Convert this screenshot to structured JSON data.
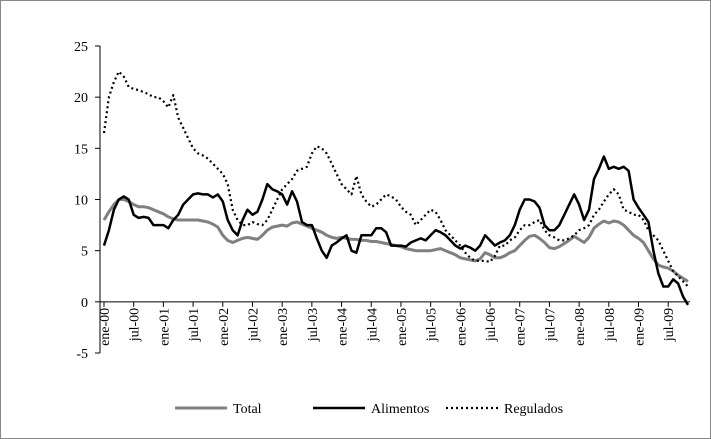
{
  "chart_data": {
    "type": "line",
    "categories": [
      "ene-00",
      null,
      null,
      null,
      null,
      null,
      "jul-00",
      null,
      null,
      null,
      null,
      null,
      "ene-01",
      null,
      null,
      null,
      null,
      null,
      "jul-01",
      null,
      null,
      null,
      null,
      null,
      "ene-02",
      null,
      null,
      null,
      null,
      null,
      "jul-02",
      null,
      null,
      null,
      null,
      null,
      "ene-03",
      null,
      null,
      null,
      null,
      null,
      "jul-03",
      null,
      null,
      null,
      null,
      null,
      "ene-04",
      null,
      null,
      null,
      null,
      null,
      "jul-04",
      null,
      null,
      null,
      null,
      null,
      "ene-05",
      null,
      null,
      null,
      null,
      null,
      "jul-05",
      null,
      null,
      null,
      null,
      null,
      "ene-06",
      null,
      null,
      null,
      null,
      null,
      "jul-06",
      null,
      null,
      null,
      null,
      null,
      "ene-07",
      null,
      null,
      null,
      null,
      null,
      "jul-07",
      null,
      null,
      null,
      null,
      null,
      "ene-08",
      null,
      null,
      null,
      null,
      null,
      "jul-08",
      null,
      null,
      null,
      null,
      null,
      "ene-09",
      null,
      null,
      null,
      null,
      null,
      "jul-09",
      null,
      null,
      null,
      null
    ],
    "series": [
      {
        "name": "Total",
        "color": "#808080",
        "style": "solid",
        "values": [
          8,
          8.8,
          9.5,
          10,
          10,
          9.8,
          9.5,
          9.3,
          9.3,
          9.2,
          9,
          8.8,
          8.6,
          8.3,
          8.1,
          8,
          8,
          8,
          8,
          8,
          7.9,
          7.8,
          7.6,
          7.3,
          6.5,
          6,
          5.8,
          6,
          6.2,
          6.3,
          6.2,
          6.1,
          6.5,
          7,
          7.3,
          7.4,
          7.5,
          7.4,
          7.7,
          7.8,
          7.6,
          7.4,
          7.2,
          7,
          6.8,
          6.5,
          6.3,
          6.2,
          6.3,
          6.2,
          6.1,
          6.1,
          6,
          6,
          5.9,
          5.9,
          5.8,
          5.7,
          5.6,
          5.5,
          5.4,
          5.2,
          5.1,
          5,
          5,
          5,
          5,
          5.1,
          5.2,
          5,
          4.8,
          4.6,
          4.3,
          4.2,
          4.1,
          4,
          4.2,
          4.8,
          4.6,
          4.3,
          4.3,
          4.5,
          4.8,
          5,
          5.5,
          6,
          6.4,
          6.5,
          6.2,
          5.8,
          5.3,
          5.2,
          5.4,
          5.7,
          6,
          6.4,
          6.1,
          5.8,
          6.3,
          7.2,
          7.6,
          7.9,
          7.7,
          7.9,
          7.8,
          7.5,
          7,
          6.5,
          6.2,
          5.8,
          5,
          4.2,
          3.6,
          3.4,
          3.3,
          3,
          2.6,
          2.3,
          2
        ]
      },
      {
        "name": "Alimentos",
        "color": "#000000",
        "style": "solid",
        "values": [
          5.5,
          7,
          9,
          10,
          10.3,
          10,
          8.5,
          8.2,
          8.3,
          8.2,
          7.5,
          7.5,
          7.5,
          7.2,
          8,
          8.5,
          9.5,
          10,
          10.5,
          10.6,
          10.5,
          10.5,
          10.2,
          10.5,
          9.8,
          8,
          7,
          6.5,
          8,
          9,
          8.5,
          8.8,
          10,
          11.5,
          11,
          10.8,
          10.5,
          9.5,
          10.8,
          9.8,
          7.8,
          7.5,
          7.5,
          6.2,
          5,
          4.3,
          5.5,
          5.8,
          6.2,
          6.5,
          5,
          4.8,
          6.5,
          6.5,
          6.5,
          7.2,
          7.2,
          6.8,
          5.5,
          5.5,
          5.5,
          5.4,
          5.8,
          6,
          6.2,
          6,
          6.5,
          7,
          6.8,
          6.5,
          6,
          5.5,
          5.2,
          5.5,
          5.3,
          5,
          5.5,
          6.5,
          6,
          5.5,
          5.8,
          6,
          6.5,
          7.5,
          9,
          10,
          10,
          9.8,
          9.2,
          7.5,
          7,
          7,
          7.5,
          8.5,
          9.5,
          10.5,
          9.5,
          8,
          9,
          12,
          13,
          14.2,
          13,
          13.2,
          13,
          13.2,
          12.8,
          10,
          9.2,
          8.5,
          7.8,
          5,
          2.8,
          1.5,
          1.5,
          2.2,
          1.8,
          0.5,
          -0.3
        ]
      },
      {
        "name": "Regulados",
        "color": "#000000",
        "style": "dotted",
        "values": [
          16.5,
          20,
          21.5,
          22.5,
          22,
          21,
          20.8,
          20.7,
          20.5,
          20.3,
          20,
          20,
          19.6,
          19,
          20.2,
          18,
          17,
          16,
          15,
          14.5,
          14.3,
          14,
          13.5,
          13,
          12.5,
          11.5,
          9,
          8,
          7.5,
          7.5,
          7.8,
          7.6,
          7.5,
          8,
          9,
          10,
          11,
          11.5,
          12,
          12.8,
          13,
          13.2,
          14.5,
          15.2,
          15,
          14.5,
          13.5,
          12.5,
          11.5,
          11,
          10.5,
          12.3,
          10.5,
          9.8,
          9.3,
          9.5,
          10,
          10.5,
          10.3,
          10,
          9.3,
          8.8,
          8.5,
          7.5,
          8,
          8.5,
          9,
          8.8,
          8,
          7,
          6.5,
          6,
          5.5,
          4.8,
          4.3,
          4,
          4,
          4,
          3.9,
          4.5,
          5.5,
          5.5,
          6,
          6.3,
          7,
          7.5,
          7.5,
          7.8,
          8,
          7,
          6.5,
          6.3,
          6,
          6,
          6.2,
          6.5,
          7,
          7.2,
          7.5,
          8.5,
          9,
          9.8,
          10.5,
          11,
          10.5,
          9,
          8.8,
          8.5,
          8.5,
          8,
          7,
          6.5,
          6,
          5,
          4,
          3,
          2.5,
          2,
          1.5
        ]
      }
    ],
    "ylim": [
      -5,
      25
    ],
    "yticks": [
      -5,
      0,
      5,
      10,
      15,
      20,
      25
    ],
    "grid": false,
    "legend": "bottom"
  }
}
